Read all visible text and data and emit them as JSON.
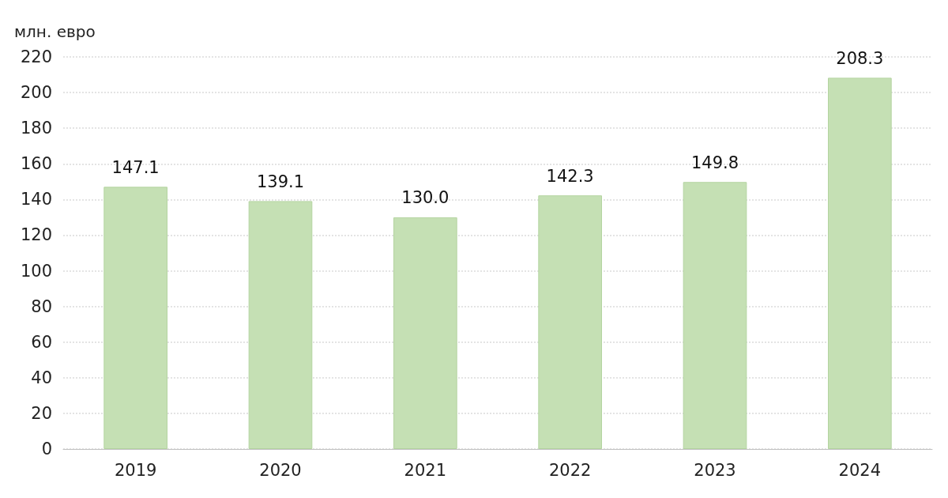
{
  "chart_data": {
    "type": "bar",
    "ylabel": "млн. евро",
    "categories": [
      "2019",
      "2020",
      "2021",
      "2022",
      "2023",
      "2024"
    ],
    "values": [
      147.1,
      139.1,
      130.0,
      142.3,
      149.8,
      208.3
    ],
    "value_labels": [
      "147.1",
      "139.1",
      "130.0",
      "142.3",
      "149.8",
      "208.3"
    ],
    "color": "#c5e0b4",
    "ylim": [
      0,
      220
    ],
    "yticks": [
      0,
      20,
      40,
      60,
      80,
      100,
      120,
      140,
      160,
      180,
      200,
      220
    ],
    "grid": "y"
  }
}
